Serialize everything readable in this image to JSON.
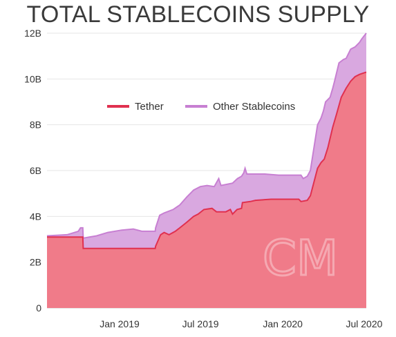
{
  "chart_data": {
    "type": "area",
    "title": "TOTAL STABLECOINS SUPPLY",
    "xlabel": "",
    "ylabel": "",
    "x_ticks": [
      "Jan 2019",
      "Jul 2019",
      "Jan 2020",
      "Jul 2020"
    ],
    "y_ticks": [
      "0",
      "2B",
      "4B",
      "6B",
      "8B",
      "10B",
      "12B"
    ],
    "ylim": [
      0,
      12
    ],
    "y_unit": "B",
    "grid": "horizontal",
    "stacked": true,
    "legend_position": "top-left",
    "watermark": "CM",
    "series": [
      {
        "name": "Tether",
        "color": "#e0304f",
        "fill": "#f07b89",
        "points": [
          [
            "2018-08-01",
            3.1
          ],
          [
            "2018-10-20",
            3.1
          ],
          [
            "2018-10-21",
            2.6
          ],
          [
            "2019-01-01",
            2.6
          ],
          [
            "2019-03-31",
            2.6
          ],
          [
            "2019-04-01",
            2.7
          ],
          [
            "2019-04-12",
            3.2
          ],
          [
            "2019-04-20",
            3.3
          ],
          [
            "2019-05-01",
            3.2
          ],
          [
            "2019-05-15",
            3.35
          ],
          [
            "2019-05-25",
            3.5
          ],
          [
            "2019-06-10",
            3.75
          ],
          [
            "2019-06-25",
            4.0
          ],
          [
            "2019-07-05",
            4.1
          ],
          [
            "2019-07-18",
            4.3
          ],
          [
            "2019-08-05",
            4.35
          ],
          [
            "2019-08-15",
            4.2
          ],
          [
            "2019-09-05",
            4.2
          ],
          [
            "2019-09-15",
            4.3
          ],
          [
            "2019-09-20",
            4.1
          ],
          [
            "2019-09-30",
            4.3
          ],
          [
            "2019-10-10",
            4.35
          ],
          [
            "2019-10-12",
            4.6
          ],
          [
            "2019-10-30",
            4.65
          ],
          [
            "2019-11-10",
            4.7
          ],
          [
            "2019-12-15",
            4.75
          ],
          [
            "2020-02-15",
            4.75
          ],
          [
            "2020-02-20",
            4.65
          ],
          [
            "2020-03-05",
            4.7
          ],
          [
            "2020-03-12",
            4.9
          ],
          [
            "2020-03-20",
            5.5
          ],
          [
            "2020-03-28",
            6.1
          ],
          [
            "2020-04-05",
            6.35
          ],
          [
            "2020-04-12",
            6.5
          ],
          [
            "2020-04-20",
            7.0
          ],
          [
            "2020-05-01",
            7.9
          ],
          [
            "2020-05-10",
            8.5
          ],
          [
            "2020-05-20",
            9.2
          ],
          [
            "2020-05-31",
            9.6
          ],
          [
            "2020-06-10",
            9.9
          ],
          [
            "2020-06-20",
            10.1
          ],
          [
            "2020-06-30",
            10.2
          ],
          [
            "2020-07-15",
            10.3
          ]
        ]
      },
      {
        "name": "Other Stablecoins",
        "color": "#c77fd2",
        "fill": "#d9a8e0",
        "points": [
          [
            "2018-08-01",
            3.15
          ],
          [
            "2018-09-15",
            3.2
          ],
          [
            "2018-10-10",
            3.35
          ],
          [
            "2018-10-15",
            3.5
          ],
          [
            "2018-10-20",
            3.5
          ],
          [
            "2018-10-21",
            3.05
          ],
          [
            "2018-11-20",
            3.15
          ],
          [
            "2018-12-15",
            3.3
          ],
          [
            "2019-01-15",
            3.4
          ],
          [
            "2019-02-10",
            3.45
          ],
          [
            "2019-03-01",
            3.35
          ],
          [
            "2019-03-31",
            3.35
          ],
          [
            "2019-04-01",
            3.5
          ],
          [
            "2019-04-10",
            4.05
          ],
          [
            "2019-04-20",
            4.15
          ],
          [
            "2019-05-10",
            4.3
          ],
          [
            "2019-05-25",
            4.5
          ],
          [
            "2019-06-10",
            4.85
          ],
          [
            "2019-06-25",
            5.15
          ],
          [
            "2019-07-10",
            5.3
          ],
          [
            "2019-07-25",
            5.35
          ],
          [
            "2019-08-10",
            5.3
          ],
          [
            "2019-08-20",
            5.65
          ],
          [
            "2019-08-25",
            5.35
          ],
          [
            "2019-09-20",
            5.45
          ],
          [
            "2019-10-01",
            5.65
          ],
          [
            "2019-10-10",
            5.75
          ],
          [
            "2019-10-15",
            5.9
          ],
          [
            "2019-10-18",
            6.1
          ],
          [
            "2019-10-22",
            5.85
          ],
          [
            "2019-12-01",
            5.85
          ],
          [
            "2020-01-01",
            5.8
          ],
          [
            "2020-02-20",
            5.8
          ],
          [
            "2020-02-25",
            5.65
          ],
          [
            "2020-03-05",
            5.75
          ],
          [
            "2020-03-12",
            6.0
          ],
          [
            "2020-03-20",
            7.0
          ],
          [
            "2020-03-28",
            8.0
          ],
          [
            "2020-04-05",
            8.3
          ],
          [
            "2020-04-10",
            8.6
          ],
          [
            "2020-04-15",
            9.0
          ],
          [
            "2020-04-25",
            9.2
          ],
          [
            "2020-05-01",
            9.6
          ],
          [
            "2020-05-05",
            9.9
          ],
          [
            "2020-05-15",
            10.7
          ],
          [
            "2020-05-25",
            10.85
          ],
          [
            "2020-05-31",
            10.9
          ],
          [
            "2020-06-10",
            11.3
          ],
          [
            "2020-06-20",
            11.4
          ],
          [
            "2020-06-30",
            11.6
          ],
          [
            "2020-07-05",
            11.75
          ],
          [
            "2020-07-15",
            12.0
          ]
        ]
      }
    ]
  }
}
